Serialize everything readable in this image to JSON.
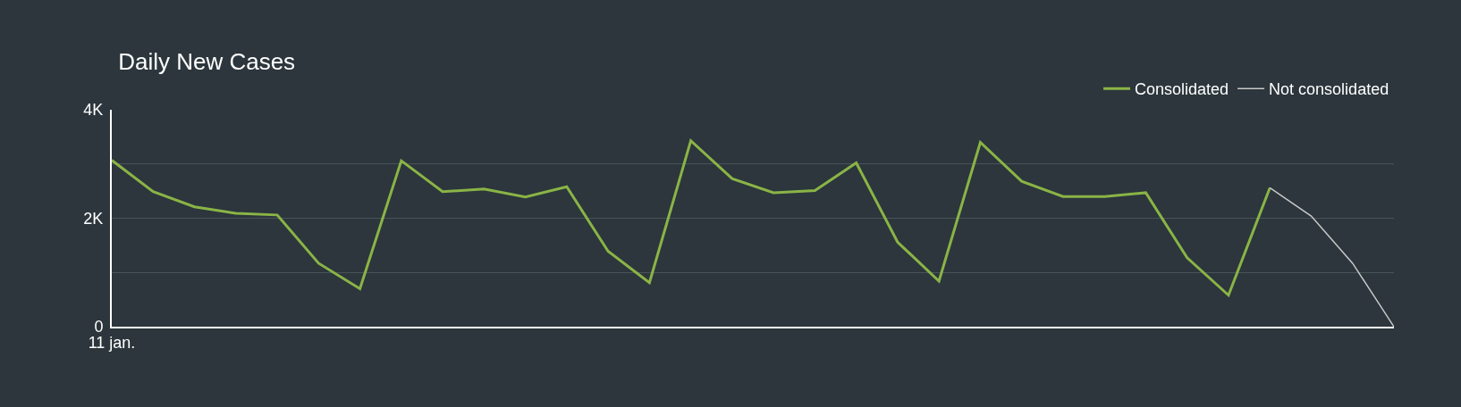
{
  "chart_data": {
    "type": "line",
    "title": "Daily New Cases",
    "categories": [
      "11 jan.",
      null,
      null,
      null,
      null,
      null,
      null,
      null,
      null,
      null,
      null,
      null,
      null,
      null,
      null,
      null,
      null,
      null,
      null,
      null,
      null,
      null,
      null,
      null,
      null,
      null,
      null,
      null,
      null,
      null,
      null,
      null
    ],
    "series": [
      {
        "name": "Consolidated",
        "color": "#8ab446",
        "values": [
          3070,
          2490,
          2210,
          2090,
          2060,
          1170,
          700,
          3060,
          2490,
          2540,
          2390,
          2580,
          1390,
          810,
          3430,
          2730,
          2470,
          2510,
          3020,
          1560,
          840,
          3400,
          2680,
          2400,
          2400,
          2470,
          1270,
          580,
          2560,
          null,
          null,
          null
        ]
      },
      {
        "name": "Not consolidated",
        "color": "#c8c8c8",
        "values": [
          null,
          null,
          null,
          null,
          null,
          null,
          null,
          null,
          null,
          null,
          null,
          null,
          null,
          null,
          null,
          null,
          null,
          null,
          null,
          null,
          null,
          null,
          null,
          null,
          null,
          null,
          null,
          null,
          2560,
          2040,
          1170,
          0
        ]
      }
    ],
    "ylim": [
      0,
      4000
    ],
    "yticks": [
      {
        "value": 0,
        "label": "0"
      },
      {
        "value": 1000,
        "label": null
      },
      {
        "value": 2000,
        "label": "2K"
      },
      {
        "value": 3000,
        "label": null
      },
      {
        "value": 4000,
        "label": "4K"
      }
    ],
    "grid": "y",
    "legend": "top right",
    "marker": "none",
    "line_style": "solid"
  }
}
